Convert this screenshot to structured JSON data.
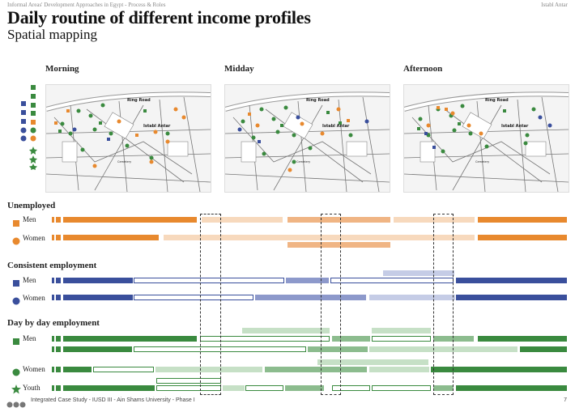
{
  "header": {
    "left": "Informal Areas' Development Approaches in Egypt - Process & Roles",
    "right": "Istabl Antar"
  },
  "title": "Daily routine of different income profiles",
  "subtitle": "Spatial mapping",
  "phases": [
    "Morning",
    "Midday",
    "Afternoon"
  ],
  "map_labels": {
    "road": "Ring Road",
    "area": "Istabl Antar",
    "small": "Cemetery"
  },
  "colors": {
    "orange": "#e8892e",
    "orange_mid": "#f0b584",
    "orange_light": "#f7d9bd",
    "blue": "#3a4f9c",
    "blue_mid": "#8d99cb",
    "blue_light": "#c5cce6",
    "green": "#3a8a3f",
    "green_mid": "#8cbc8e",
    "green_light": "#c6e0c6"
  },
  "groups": [
    {
      "title": "Unemployed",
      "rows": [
        {
          "label": "Men",
          "marker": "square"
        },
        {
          "label": "Women",
          "marker": "circle"
        }
      ]
    },
    {
      "title": "Consistent employment",
      "rows": [
        {
          "label": "Men",
          "marker": "square"
        },
        {
          "label": "Women",
          "marker": "circle"
        }
      ]
    },
    {
      "title": "Day by day employment",
      "rows": [
        {
          "label": "Men",
          "marker": "square"
        },
        {
          "label": "Women",
          "marker": "circle"
        },
        {
          "label": "Youth",
          "marker": "star"
        }
      ]
    }
  ],
  "footer": {
    "text": "Integrated Case Study - IUSD III - Ain Shams University - Phase I",
    "page": "7"
  }
}
